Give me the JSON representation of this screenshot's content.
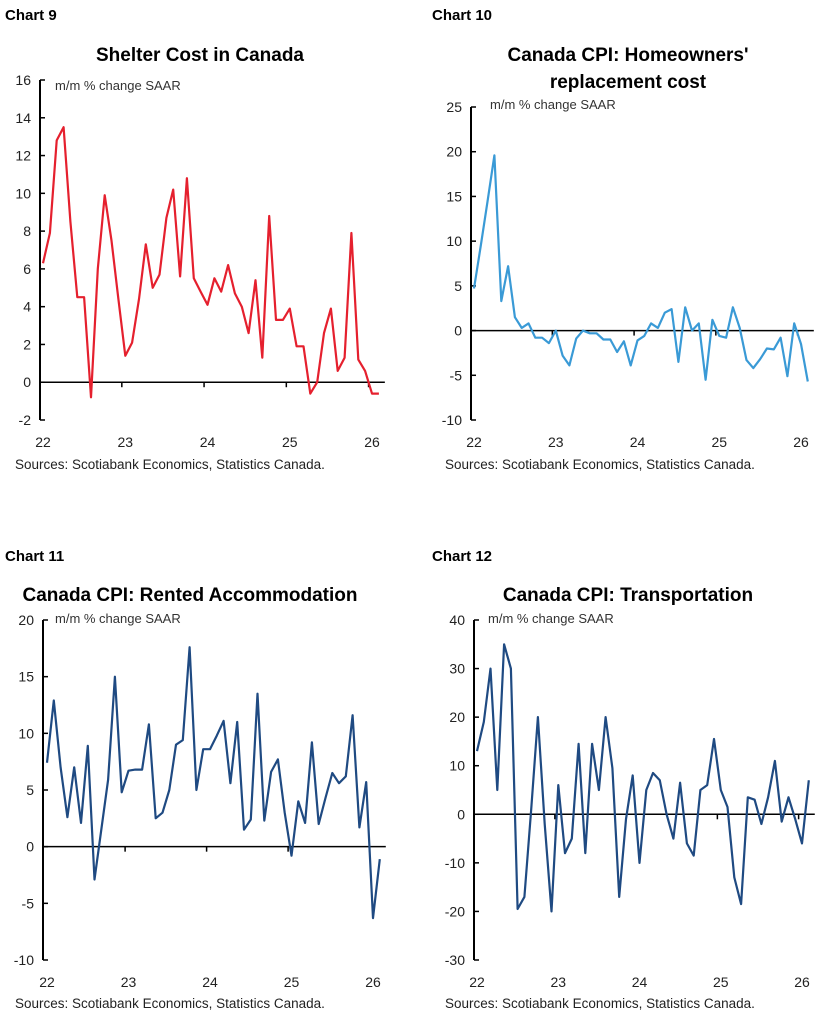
{
  "chart_data": [
    {
      "type": "line",
      "label": "Chart 9",
      "title": [
        "Shelter Cost in Canada"
      ],
      "unit_label": "m/m % change SAAR",
      "source": "Sources: Scotiabank Economics, Statistics Canada.",
      "color": "#e5202e",
      "x_tick_labels": [
        "22",
        "23",
        "24",
        "25",
        "26"
      ],
      "x_start": "2022-01",
      "frequency": "monthly",
      "ylim": [
        -2,
        16
      ],
      "y_ticks": [
        -2,
        0,
        2,
        4,
        6,
        8,
        10,
        12,
        14,
        16
      ],
      "values": [
        6.3,
        7.9,
        12.8,
        13.5,
        8.5,
        4.5,
        4.5,
        -0.8,
        6.0,
        9.9,
        7.5,
        4.4,
        1.4,
        2.1,
        4.4,
        7.3,
        5.0,
        5.7,
        8.7,
        10.2,
        5.6,
        10.8,
        5.5,
        4.8,
        4.1,
        5.5,
        4.8,
        6.2,
        4.7,
        4.0,
        2.6,
        5.4,
        1.3,
        8.8,
        3.3,
        3.3,
        3.9,
        1.9,
        1.9,
        -0.6,
        0.0,
        2.6,
        3.9,
        0.6,
        1.3,
        7.9,
        1.2,
        0.6,
        -0.6,
        -0.6
      ]
    },
    {
      "type": "line",
      "label": "Chart 10",
      "title": [
        "Canada CPI: Homeowners'",
        "replacement cost"
      ],
      "unit_label": "m/m % change SAAR",
      "source": "Sources: Scotiabank Economics, Statistics Canada.",
      "color": "#3a9ad6",
      "x_tick_labels": [
        "22",
        "23",
        "24",
        "25",
        "26"
      ],
      "x_start": "2022-01",
      "frequency": "monthly",
      "ylim": [
        -10,
        25
      ],
      "y_ticks": [
        -10,
        -5,
        0,
        5,
        10,
        15,
        20,
        25
      ],
      "values": [
        4.7,
        9.5,
        14.5,
        19.6,
        3.3,
        7.2,
        1.5,
        0.3,
        0.8,
        -0.8,
        -0.8,
        -1.4,
        0.0,
        -2.8,
        -3.9,
        -0.9,
        0.0,
        -0.3,
        -0.3,
        -1.0,
        -1.0,
        -2.4,
        -1.2,
        -3.9,
        -1.1,
        -0.6,
        0.8,
        0.3,
        2.0,
        2.4,
        -3.5,
        2.6,
        0.0,
        0.8,
        -5.5,
        1.2,
        -0.6,
        -0.8,
        2.6,
        0.3,
        -3.3,
        -4.2,
        -3.2,
        -2.0,
        -2.1,
        -0.8,
        -5.1,
        0.8,
        -1.5,
        -5.7
      ]
    },
    {
      "type": "line",
      "label": "Chart 11",
      "title": [
        "Canada CPI: Rented Accommodation"
      ],
      "unit_label": "m/m % change SAAR",
      "source": "Sources: Scotiabank Economics, Statistics Canada.",
      "color": "#1f4a82",
      "x_tick_labels": [
        "22",
        "23",
        "24",
        "25",
        "26"
      ],
      "x_start": "2022-01",
      "frequency": "monthly",
      "ylim": [
        -10,
        20
      ],
      "y_ticks": [
        -10,
        -5,
        0,
        5,
        10,
        15,
        20
      ],
      "values": [
        7.4,
        12.9,
        7.0,
        2.6,
        7.0,
        2.1,
        8.9,
        -2.9,
        1.5,
        5.9,
        15.0,
        4.8,
        6.7,
        6.8,
        6.8,
        10.8,
        2.5,
        3.0,
        5.0,
        9.0,
        9.4,
        17.6,
        5.0,
        8.6,
        8.6,
        9.8,
        11.1,
        5.6,
        11.0,
        1.5,
        2.4,
        13.5,
        2.3,
        6.6,
        7.7,
        3.0,
        -0.8,
        4.0,
        2.1,
        9.2,
        2.0,
        4.3,
        6.5,
        5.6,
        6.2,
        11.6,
        1.7,
        5.7,
        -6.3,
        -1.1
      ]
    },
    {
      "type": "line",
      "label": "Chart 12",
      "title": [
        "Canada CPI: Transportation"
      ],
      "unit_label": "m/m % change SAAR",
      "source": "Sources: Scotiabank Economics, Statistics Canada.",
      "color": "#1f4a82",
      "x_tick_labels": [
        "22",
        "23",
        "24",
        "25",
        "26"
      ],
      "x_start": "2022-01",
      "frequency": "monthly",
      "ylim": [
        -30,
        40
      ],
      "y_ticks": [
        -30,
        -20,
        -10,
        0,
        10,
        20,
        30,
        40
      ],
      "values": [
        13,
        19,
        30,
        5,
        35,
        30,
        -19.5,
        -17,
        1,
        20,
        -2,
        -20,
        6,
        -8,
        -5,
        14.5,
        -8,
        14.5,
        5,
        20,
        9.5,
        -17,
        -1,
        8,
        -10,
        5,
        8.5,
        7,
        0,
        -5,
        6.5,
        -6,
        -8.5,
        5,
        6,
        15.5,
        5,
        1.5,
        -13,
        -18.5,
        3.5,
        3,
        -2,
        3.5,
        11,
        -1.5,
        3.5,
        -1,
        -6,
        7
      ]
    }
  ]
}
